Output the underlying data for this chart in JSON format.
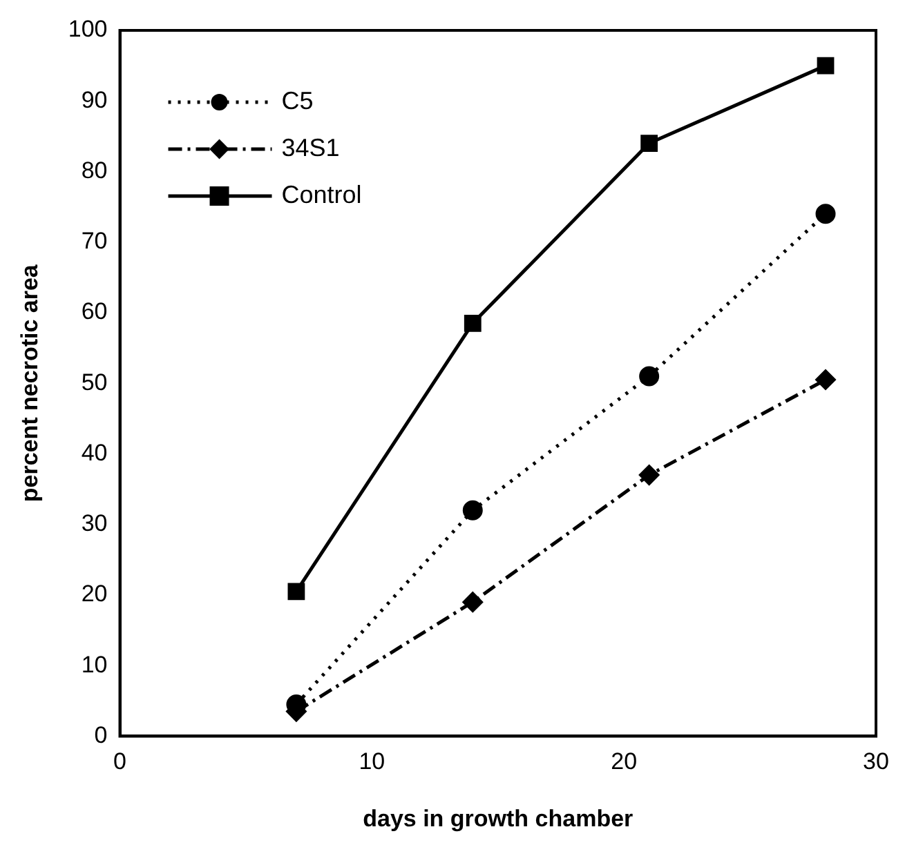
{
  "chart_data": {
    "type": "line",
    "xlabel": "days in growth chamber",
    "ylabel": "percent necrotic area",
    "x": [
      7,
      14,
      21,
      28
    ],
    "series": [
      {
        "name": "C5",
        "color": "#000000",
        "values": [
          4.5,
          32,
          51,
          74
        ],
        "marker": "circle",
        "line_style": "dotted"
      },
      {
        "name": "34S1",
        "color": "#000000",
        "values": [
          3.5,
          19,
          37,
          50.5
        ],
        "marker": "diamond",
        "line_style": "dashed"
      },
      {
        "name": "Control",
        "color": "#000000",
        "values": [
          20.5,
          58.5,
          84,
          95
        ],
        "marker": "square",
        "line_style": "solid"
      }
    ],
    "xlim": [
      0,
      30
    ],
    "xticks": [
      0,
      10,
      20,
      30
    ],
    "ylim": [
      0,
      100
    ],
    "yticks": [
      0,
      10,
      20,
      30,
      40,
      50,
      60,
      70,
      80,
      90,
      100
    ],
    "grid": false,
    "legend": "top left"
  }
}
